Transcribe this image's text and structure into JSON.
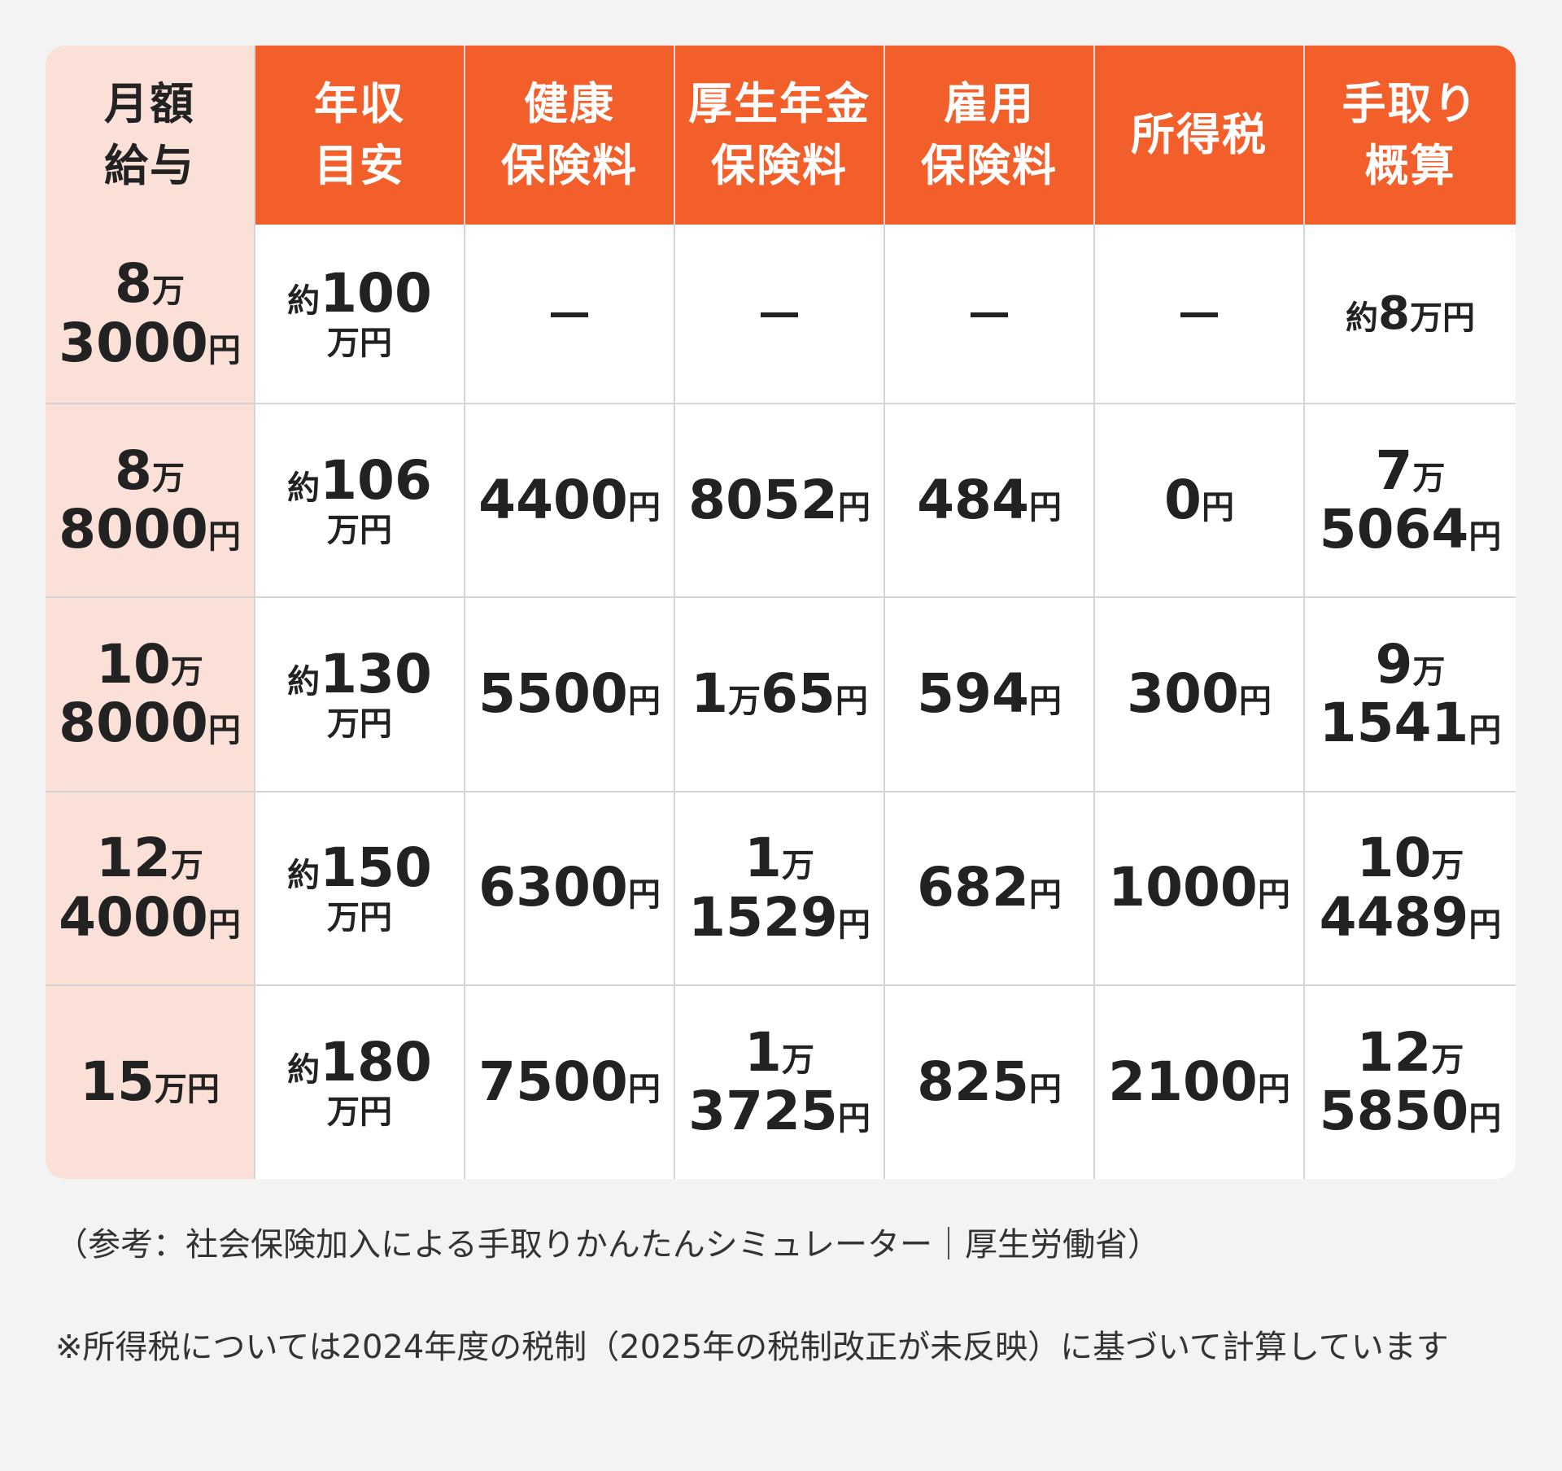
{
  "table": {
    "corner": [
      "月額",
      "給与"
    ],
    "headers": [
      [
        "年収",
        "目安"
      ],
      [
        "健康",
        "保険料"
      ],
      [
        "厚生年金",
        "保険料"
      ],
      [
        "雇用",
        "保険料"
      ],
      [
        "所得税"
      ],
      [
        "手取り",
        "概算"
      ]
    ],
    "rows": [
      {
        "salary": [
          {
            "num": "8",
            "unit": "万"
          },
          {
            "num": "3000",
            "unit": "円"
          }
        ],
        "annual": {
          "prefix": "約",
          "num": "100",
          "unit": "万円"
        },
        "health": null,
        "pension": null,
        "employment": null,
        "income_tax": null,
        "takehome": {
          "prefix": "約",
          "num": "8",
          "unit": "万円"
        }
      },
      {
        "salary": [
          {
            "num": "8",
            "unit": "万"
          },
          {
            "num": "8000",
            "unit": "円"
          }
        ],
        "annual": {
          "prefix": "約",
          "num": "106",
          "unit": "万円"
        },
        "health": [
          {
            "num": "4400",
            "unit": "円"
          }
        ],
        "pension": [
          {
            "num": "8052",
            "unit": "円"
          }
        ],
        "employment": [
          {
            "num": "484",
            "unit": "円"
          }
        ],
        "income_tax": [
          {
            "num": "0",
            "unit": "円"
          }
        ],
        "takehome": [
          {
            "num": "7",
            "unit": "万"
          },
          {
            "num": "5064",
            "unit": "円"
          }
        ]
      },
      {
        "salary": [
          {
            "num": "10",
            "unit": "万"
          },
          {
            "num": "8000",
            "unit": "円"
          }
        ],
        "annual": {
          "prefix": "約",
          "num": "130",
          "unit": "万円"
        },
        "health": [
          {
            "num": "5500",
            "unit": "円"
          }
        ],
        "pension": [
          {
            "num": "1",
            "unit": "万",
            "num2": "65",
            "unit2": "円"
          }
        ],
        "employment": [
          {
            "num": "594",
            "unit": "円"
          }
        ],
        "income_tax": [
          {
            "num": "300",
            "unit": "円"
          }
        ],
        "takehome": [
          {
            "num": "9",
            "unit": "万"
          },
          {
            "num": "1541",
            "unit": "円"
          }
        ]
      },
      {
        "salary": [
          {
            "num": "12",
            "unit": "万"
          },
          {
            "num": "4000",
            "unit": "円"
          }
        ],
        "annual": {
          "prefix": "約",
          "num": "150",
          "unit": "万円"
        },
        "health": [
          {
            "num": "6300",
            "unit": "円"
          }
        ],
        "pension": [
          {
            "num": "1",
            "unit": "万"
          },
          {
            "num": "1529",
            "unit": "円"
          }
        ],
        "employment": [
          {
            "num": "682",
            "unit": "円"
          }
        ],
        "income_tax": [
          {
            "num": "1000",
            "unit": "円"
          }
        ],
        "takehome": [
          {
            "num": "10",
            "unit": "万"
          },
          {
            "num": "4489",
            "unit": "円"
          }
        ]
      },
      {
        "salary": [
          {
            "num": "15",
            "unit": "万円"
          }
        ],
        "annual": {
          "prefix": "約",
          "num": "180",
          "unit": "万円"
        },
        "health": [
          {
            "num": "7500",
            "unit": "円"
          }
        ],
        "pension": [
          {
            "num": "1",
            "unit": "万"
          },
          {
            "num": "3725",
            "unit": "円"
          }
        ],
        "employment": [
          {
            "num": "825",
            "unit": "円"
          }
        ],
        "income_tax": [
          {
            "num": "2100",
            "unit": "円"
          }
        ],
        "takehome": [
          {
            "num": "12",
            "unit": "万"
          },
          {
            "num": "5850",
            "unit": "円"
          }
        ]
      }
    ],
    "dash": "–"
  },
  "notes": {
    "source": "（参考：社会保険加入による手取りかんたんシミュレーター｜厚生労働省）",
    "tax": "※所得税については2024年度の税制（2025年の税制改正が未反映）に基づいて計算しています"
  },
  "colors": {
    "header_bg": "#f35f2a",
    "row_header_bg": "#fbe0d7",
    "page_bg": "#f3f3f3"
  }
}
